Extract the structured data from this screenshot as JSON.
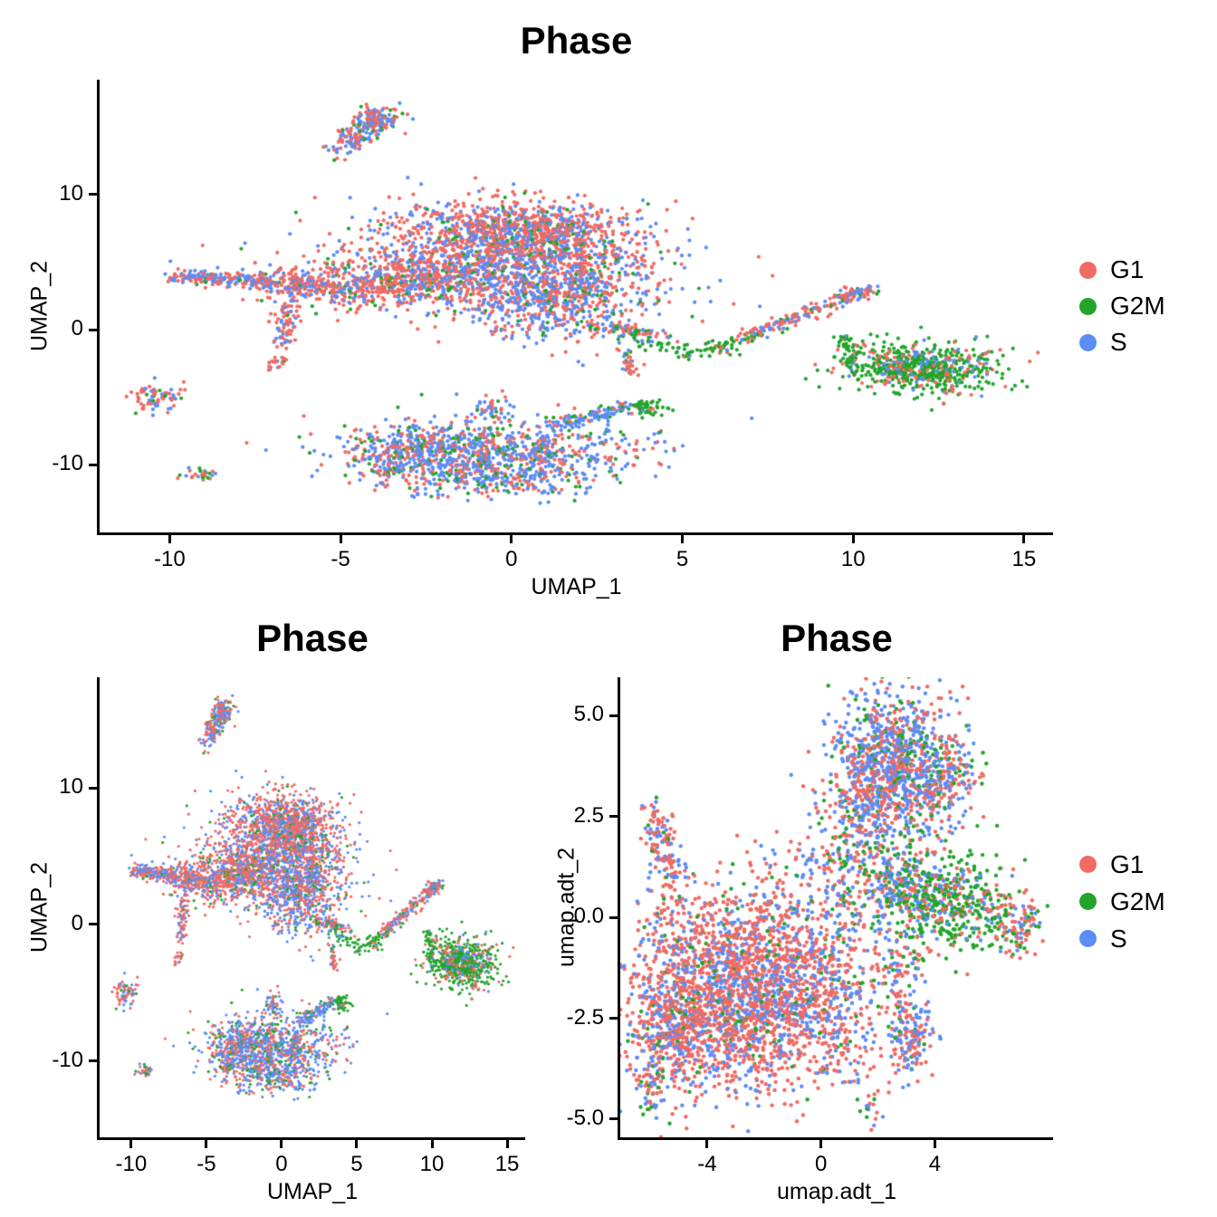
{
  "palette": {
    "G1": "#EF6B63",
    "G2M": "#23A42C",
    "S": "#5C8CF6"
  },
  "chart_data": {
    "type": "scatter",
    "charts": [
      {
        "id": "rna-umap-main",
        "title": "Phase",
        "xlabel": "UMAP_1",
        "ylabel": "UMAP_2",
        "dataset": "rna",
        "point_radius": 2.1,
        "xlim": [
          -12.05,
          15.85
        ],
        "ylim": [
          -15.0,
          18.5
        ],
        "xticks": {
          "values": [
            -10,
            -5,
            0,
            5,
            10,
            15
          ],
          "labels": [
            "-10",
            "-5",
            "0",
            "5",
            "10",
            "15"
          ]
        },
        "yticks": {
          "values": [
            10,
            0,
            -10
          ],
          "labels": [
            "10",
            "0",
            "-10"
          ]
        },
        "legend": true
      },
      {
        "id": "rna-umap-small",
        "title": "Phase",
        "xlabel": "UMAP_1",
        "ylabel": "UMAP_2",
        "dataset": "rna",
        "point_radius": 1.6,
        "xlim": [
          -12.1,
          16.2
        ],
        "ylim": [
          -15.6,
          18.1
        ],
        "xticks": {
          "values": [
            -10,
            -5,
            0,
            5,
            10,
            15
          ],
          "labels": [
            "-10",
            "-5",
            "0",
            "5",
            "10",
            "15"
          ]
        },
        "yticks": {
          "values": [
            10,
            0,
            -10
          ],
          "labels": [
            "10",
            "0",
            "-10"
          ]
        },
        "legend": false
      },
      {
        "id": "adt-umap",
        "title": "Phase",
        "xlabel": "umap.adt_1",
        "ylabel": "umap.adt_2",
        "dataset": "adt",
        "point_radius": 2.2,
        "xlim": [
          -7.05,
          8.15
        ],
        "ylim": [
          -5.45,
          5.95
        ],
        "xticks": {
          "values": [
            -4,
            0,
            4
          ],
          "labels": [
            "-4",
            "0",
            "4"
          ]
        },
        "yticks": {
          "values": [
            5,
            2.5,
            0,
            -2.5,
            -5
          ],
          "labels": [
            "5.0",
            "2.5",
            "0.0",
            "-2.5",
            "-5.0"
          ]
        },
        "legend": true
      }
    ],
    "legend": {
      "items": [
        {
          "label": "G1",
          "phase": "G1"
        },
        {
          "label": "G2M",
          "phase": "G2M"
        },
        {
          "label": "S",
          "phase": "S"
        }
      ]
    },
    "datasets": {
      "rna": {
        "seed": 42,
        "phases": [
          "G1",
          "G2M",
          "S"
        ],
        "clusters": [
          {
            "type": "gauss",
            "cx": -0.2,
            "cy": 7.6,
            "sx": 1.9,
            "sy": 1.1,
            "n": 720,
            "mix": [
              0.6,
              0.05,
              0.35
            ]
          },
          {
            "type": "gauss",
            "cx": 1.2,
            "cy": 6.3,
            "sx": 1.2,
            "sy": 1.2,
            "n": 350,
            "mix": [
              0.55,
              0.06,
              0.39
            ]
          },
          {
            "type": "gauss",
            "cx": -0.9,
            "cy": 4.6,
            "sx": 2.5,
            "sy": 1.3,
            "n": 900,
            "mix": [
              0.52,
              0.07,
              0.41
            ]
          },
          {
            "type": "gauss",
            "cx": 1.3,
            "cy": 2.2,
            "sx": 1.5,
            "sy": 1.5,
            "n": 650,
            "mix": [
              0.4,
              0.08,
              0.52
            ]
          },
          {
            "type": "gauss",
            "cx": -3.3,
            "cy": 3.3,
            "sx": 1.4,
            "sy": 0.9,
            "n": 430,
            "mix": [
              0.62,
              0.07,
              0.31
            ]
          },
          {
            "type": "line",
            "x1": -9.95,
            "y1": 3.95,
            "x2": -7.0,
            "y2": 3.55,
            "jx": 0.18,
            "jy": 0.25,
            "n": 190,
            "mix": [
              0.52,
              0.05,
              0.43
            ]
          },
          {
            "type": "line",
            "x1": -7.0,
            "y1": 3.5,
            "x2": -4.7,
            "y2": 3.05,
            "jx": 0.35,
            "jy": 0.5,
            "n": 170,
            "mix": [
              0.58,
              0.06,
              0.36
            ]
          },
          {
            "type": "line",
            "x1": -6.3,
            "y1": 3.4,
            "x2": -6.75,
            "y2": -1.0,
            "jx": 0.18,
            "jy": 0.3,
            "n": 90,
            "mix": [
              0.62,
              0.05,
              0.33
            ]
          },
          {
            "type": "gauss",
            "cx": -6.9,
            "cy": -2.5,
            "sx": 0.15,
            "sy": 0.3,
            "n": 20,
            "mix": [
              0.85,
              0.05,
              0.1
            ]
          },
          {
            "type": "line",
            "x1": -5.0,
            "y1": 13.5,
            "x2": -3.7,
            "y2": 16.1,
            "jx": 0.3,
            "jy": 0.5,
            "n": 160,
            "mix": [
              0.47,
              0.08,
              0.45
            ]
          },
          {
            "type": "gauss",
            "cx": -3.95,
            "cy": 15.6,
            "sx": 0.35,
            "sy": 0.45,
            "n": 70,
            "mix": [
              0.5,
              0.08,
              0.42
            ]
          },
          {
            "type": "line",
            "x1": 2.2,
            "y1": 0.3,
            "x2": 4.3,
            "y2": -0.45,
            "jx": 0.3,
            "jy": 0.2,
            "n": 85,
            "mix": [
              0.45,
              0.2,
              0.35
            ]
          },
          {
            "type": "line",
            "x1": 3.4,
            "y1": -0.6,
            "x2": 5.4,
            "y2": -1.9,
            "jx": 0.25,
            "jy": 0.2,
            "n": 40,
            "mix": [
              0.1,
              0.8,
              0.1
            ]
          },
          {
            "type": "line",
            "x1": 5.4,
            "y1": -1.9,
            "x2": 7.2,
            "y2": -0.3,
            "jx": 0.25,
            "jy": 0.2,
            "n": 40,
            "mix": [
              0.12,
              0.76,
              0.12
            ]
          },
          {
            "type": "line",
            "x1": 6.9,
            "y1": -0.5,
            "x2": 10.1,
            "y2": 2.7,
            "jx": 0.22,
            "jy": 0.22,
            "n": 150,
            "mix": [
              0.58,
              0.12,
              0.3
            ]
          },
          {
            "type": "gauss",
            "cx": 10.1,
            "cy": 2.75,
            "sx": 0.3,
            "sy": 0.25,
            "n": 50,
            "mix": [
              0.62,
              0.12,
              0.26
            ]
          },
          {
            "type": "line",
            "x1": 9.75,
            "y1": -0.2,
            "x2": 10.05,
            "y2": -2.9,
            "jx": 0.12,
            "jy": 0.3,
            "n": 42,
            "mix": [
              0.1,
              0.8,
              0.1
            ]
          },
          {
            "type": "line",
            "x1": 3.35,
            "y1": -1.4,
            "x2": 3.55,
            "y2": -3.3,
            "jx": 0.12,
            "jy": 0.25,
            "n": 32,
            "mix": [
              0.78,
              0.06,
              0.16
            ]
          },
          {
            "type": "gauss",
            "cx": 6.1,
            "cy": -1.5,
            "sx": 0.3,
            "sy": 0.25,
            "n": 22,
            "mix": [
              0.1,
              0.8,
              0.1
            ]
          },
          {
            "type": "gauss",
            "cx": 12.0,
            "cy": -2.8,
            "sx": 1.05,
            "sy": 0.9,
            "n": 520,
            "mix": [
              0.16,
              0.76,
              0.08
            ]
          },
          {
            "type": "gauss",
            "cx": 12.0,
            "cy": -2.8,
            "sx": 1.35,
            "sy": 1.1,
            "n": 100,
            "mix": [
              0.6,
              0.25,
              0.15
            ]
          },
          {
            "type": "gauss",
            "cx": -0.6,
            "cy": -9.0,
            "sx": 2.0,
            "sy": 1.15,
            "n": 800,
            "mix": [
              0.33,
              0.15,
              0.52
            ]
          },
          {
            "type": "gauss",
            "cx": -2.9,
            "cy": -8.7,
            "sx": 0.8,
            "sy": 0.8,
            "n": 170,
            "mix": [
              0.38,
              0.13,
              0.49
            ]
          },
          {
            "type": "gauss",
            "cx": -0.6,
            "cy": -11.2,
            "sx": 1.5,
            "sy": 0.7,
            "n": 240,
            "mix": [
              0.36,
              0.14,
              0.5
            ]
          },
          {
            "type": "gauss",
            "cx": -3.6,
            "cy": -10.4,
            "sx": 0.4,
            "sy": 0.55,
            "n": 60,
            "mix": [
              0.35,
              0.15,
              0.5
            ]
          },
          {
            "type": "gauss",
            "cx": -0.6,
            "cy": -5.8,
            "sx": 0.28,
            "sy": 0.55,
            "n": 45,
            "mix": [
              0.4,
              0.08,
              0.52
            ]
          },
          {
            "type": "line",
            "x1": 1.3,
            "y1": -7.1,
            "x2": 3.4,
            "y2": -5.7,
            "jx": 0.22,
            "jy": 0.25,
            "n": 110,
            "mix": [
              0.1,
              0.12,
              0.78
            ]
          },
          {
            "type": "gauss",
            "cx": 3.95,
            "cy": -5.75,
            "sx": 0.3,
            "sy": 0.28,
            "n": 50,
            "mix": [
              0.08,
              0.84,
              0.08
            ]
          },
          {
            "type": "gauss",
            "cx": -10.4,
            "cy": -4.9,
            "sx": 0.4,
            "sy": 0.5,
            "n": 70,
            "mix": [
              0.55,
              0.06,
              0.39
            ]
          },
          {
            "type": "gauss",
            "cx": -9.1,
            "cy": -10.8,
            "sx": 0.26,
            "sy": 0.22,
            "n": 26,
            "mix": [
              0.45,
              0.3,
              0.25
            ]
          }
        ]
      },
      "adt": {
        "seed": 7,
        "phases": [
          "G1",
          "G2M",
          "S"
        ],
        "clusters": [
          {
            "type": "gauss",
            "cx": 2.5,
            "cy": 4.1,
            "sx": 1.0,
            "sy": 0.75,
            "n": 650,
            "mix": [
              0.33,
              0.13,
              0.54
            ]
          },
          {
            "type": "gauss",
            "cx": 1.6,
            "cy": 2.9,
            "sx": 0.8,
            "sy": 0.7,
            "n": 300,
            "mix": [
              0.46,
              0.12,
              0.42
            ]
          },
          {
            "type": "gauss",
            "cx": 3.6,
            "cy": 3.2,
            "sx": 0.8,
            "sy": 0.8,
            "n": 250,
            "mix": [
              0.4,
              0.14,
              0.46
            ]
          },
          {
            "type": "gauss",
            "cx": 4.6,
            "cy": 3.6,
            "sx": 0.5,
            "sy": 0.5,
            "n": 100,
            "mix": [
              0.44,
              0.16,
              0.4
            ]
          },
          {
            "type": "line",
            "x1": -5.9,
            "y1": 2.5,
            "x2": -5.2,
            "y2": 0.9,
            "jx": 0.25,
            "jy": 0.3,
            "n": 140,
            "mix": [
              0.58,
              0.08,
              0.34
            ]
          },
          {
            "type": "gauss",
            "cx": -5.5,
            "cy": 0.2,
            "sx": 0.3,
            "sy": 0.35,
            "n": 30,
            "mix": [
              0.7,
              0.1,
              0.2
            ]
          },
          {
            "type": "gauss",
            "cx": 4.4,
            "cy": 0.3,
            "sx": 1.15,
            "sy": 0.6,
            "n": 480,
            "mix": [
              0.2,
              0.63,
              0.17
            ]
          },
          {
            "type": "gauss",
            "cx": 2.9,
            "cy": 0.9,
            "sx": 0.6,
            "sy": 0.5,
            "n": 150,
            "mix": [
              0.35,
              0.3,
              0.35
            ]
          },
          {
            "type": "gauss",
            "cx": 6.8,
            "cy": -0.2,
            "sx": 0.45,
            "sy": 0.4,
            "n": 110,
            "mix": [
              0.5,
              0.3,
              0.2
            ]
          },
          {
            "type": "gauss",
            "cx": -3.2,
            "cy": -2.3,
            "sx": 1.8,
            "sy": 1.05,
            "n": 1500,
            "mix": [
              0.63,
              0.05,
              0.32
            ]
          },
          {
            "type": "gauss",
            "cx": -0.6,
            "cy": -1.4,
            "sx": 1.4,
            "sy": 1.0,
            "n": 650,
            "mix": [
              0.55,
              0.07,
              0.38
            ]
          },
          {
            "type": "gauss",
            "cx": -5.2,
            "cy": -2.6,
            "sx": 0.7,
            "sy": 0.9,
            "n": 280,
            "mix": [
              0.63,
              0.06,
              0.31
            ]
          },
          {
            "type": "gauss",
            "cx": -3.4,
            "cy": -0.6,
            "sx": 1.3,
            "sy": 0.6,
            "n": 220,
            "mix": [
              0.68,
              0.06,
              0.26
            ]
          },
          {
            "type": "gauss",
            "cx": -5.95,
            "cy": -4.15,
            "sx": 0.25,
            "sy": 0.45,
            "n": 50,
            "mix": [
              0.4,
              0.25,
              0.35
            ]
          },
          {
            "type": "gauss",
            "cx": -2.5,
            "cy": 0.4,
            "sx": 1.3,
            "sy": 0.7,
            "n": 90,
            "mix": [
              0.7,
              0.1,
              0.2
            ]
          },
          {
            "type": "gauss",
            "cx": 0.4,
            "cy": 0.9,
            "sx": 1.1,
            "sy": 0.9,
            "n": 160,
            "mix": [
              0.48,
              0.16,
              0.36
            ]
          },
          {
            "type": "gauss",
            "cx": 1.9,
            "cy": 1.4,
            "sx": 0.7,
            "sy": 0.7,
            "n": 130,
            "mix": [
              0.4,
              0.22,
              0.38
            ]
          },
          {
            "type": "gauss",
            "cx": 2.8,
            "cy": -1.3,
            "sx": 0.4,
            "sy": 0.5,
            "n": 70,
            "mix": [
              0.5,
              0.15,
              0.35
            ]
          },
          {
            "type": "gauss",
            "cx": 3.15,
            "cy": -2.95,
            "sx": 0.42,
            "sy": 0.55,
            "n": 160,
            "mix": [
              0.45,
              0.07,
              0.48
            ]
          },
          {
            "type": "gauss",
            "cx": 0.9,
            "cy": -3.3,
            "sx": 0.5,
            "sy": 0.5,
            "n": 60,
            "mix": [
              0.55,
              0.1,
              0.35
            ]
          },
          {
            "type": "gauss",
            "cx": 1.7,
            "cy": -4.8,
            "sx": 0.18,
            "sy": 0.25,
            "n": 16,
            "mix": [
              0.4,
              0.25,
              0.35
            ]
          }
        ]
      }
    }
  }
}
